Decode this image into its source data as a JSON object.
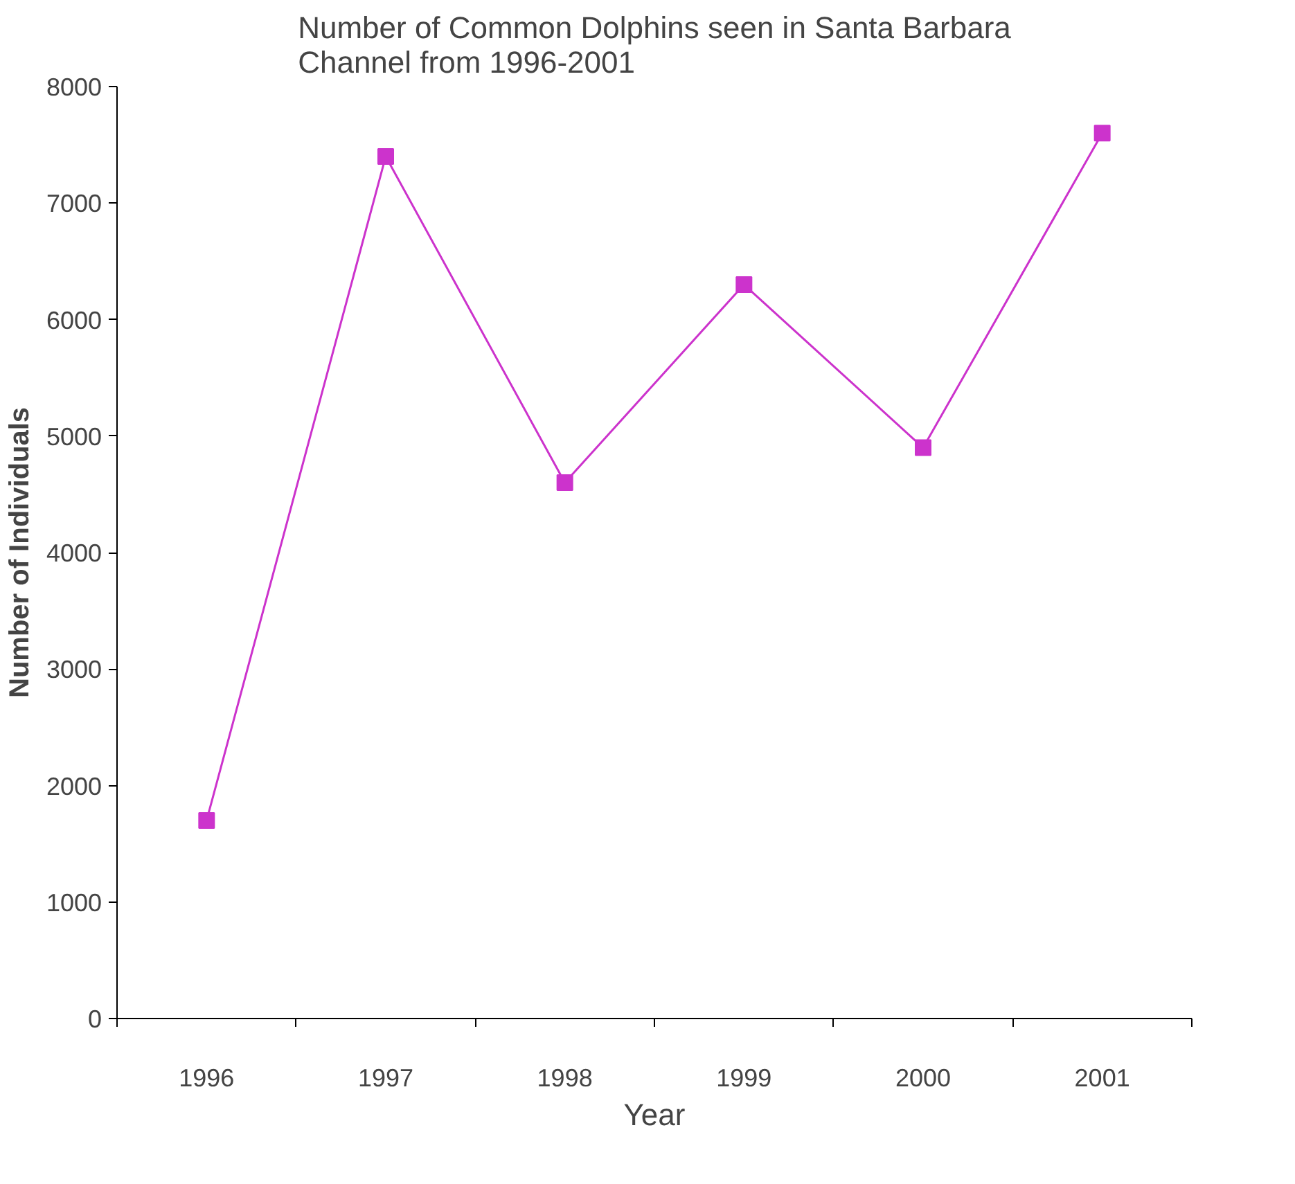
{
  "chart_data": {
    "type": "line",
    "title": "Number of Common Dolphins seen in Santa Barbara\nChannel from 1996-2001",
    "xlabel": "Year",
    "ylabel": "Number of Individuals",
    "categories": [
      "1996",
      "1997",
      "1998",
      "1999",
      "2000",
      "2001"
    ],
    "series": [
      {
        "color": "#cc33cc",
        "values": [
          1700,
          7400,
          4600,
          6300,
          4900,
          7600
        ]
      }
    ],
    "ylim": [
      0,
      8000
    ],
    "yticks": [
      0,
      1000,
      2000,
      3000,
      4000,
      5000,
      6000,
      7000,
      8000
    ],
    "grid": false,
    "marker": "square",
    "line_style": "solid"
  }
}
